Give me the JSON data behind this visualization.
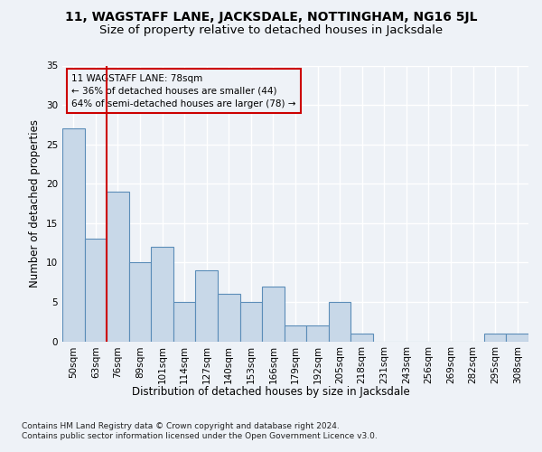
{
  "title": "11, WAGSTAFF LANE, JACKSDALE, NOTTINGHAM, NG16 5JL",
  "subtitle": "Size of property relative to detached houses in Jacksdale",
  "xlabel_bottom": "Distribution of detached houses by size in Jacksdale",
  "ylabel": "Number of detached properties",
  "categories": [
    "50sqm",
    "63sqm",
    "76sqm",
    "89sqm",
    "101sqm",
    "114sqm",
    "127sqm",
    "140sqm",
    "153sqm",
    "166sqm",
    "179sqm",
    "192sqm",
    "205sqm",
    "218sqm",
    "231sqm",
    "243sqm",
    "256sqm",
    "269sqm",
    "282sqm",
    "295sqm",
    "308sqm"
  ],
  "values": [
    27,
    13,
    19,
    10,
    12,
    5,
    9,
    6,
    5,
    7,
    2,
    2,
    5,
    1,
    0,
    0,
    0,
    0,
    0,
    1,
    1
  ],
  "bar_color": "#c8d8e8",
  "bar_edge_color": "#5b8db8",
  "bar_edge_width": 0.8,
  "vline_x": 1.5,
  "vline_color": "#cc0000",
  "annotation_line1": "11 WAGSTAFF LANE: 78sqm",
  "annotation_line2": "← 36% of detached houses are smaller (44)",
  "annotation_line3": "64% of semi-detached houses are larger (78) →",
  "box_color": "#cc0000",
  "ylim": [
    0,
    35
  ],
  "yticks": [
    0,
    5,
    10,
    15,
    20,
    25,
    30,
    35
  ],
  "title_fontsize": 10,
  "subtitle_fontsize": 9.5,
  "axis_label_fontsize": 8.5,
  "tick_fontsize": 7.5,
  "annotation_fontsize": 7.5,
  "footer_text": "Contains HM Land Registry data © Crown copyright and database right 2024.\nContains public sector information licensed under the Open Government Licence v3.0.",
  "footer_fontsize": 6.5,
  "background_color": "#eef2f7",
  "plot_bg_color": "#eef2f7",
  "grid_color": "#ffffff",
  "grid_alpha": 1.0
}
